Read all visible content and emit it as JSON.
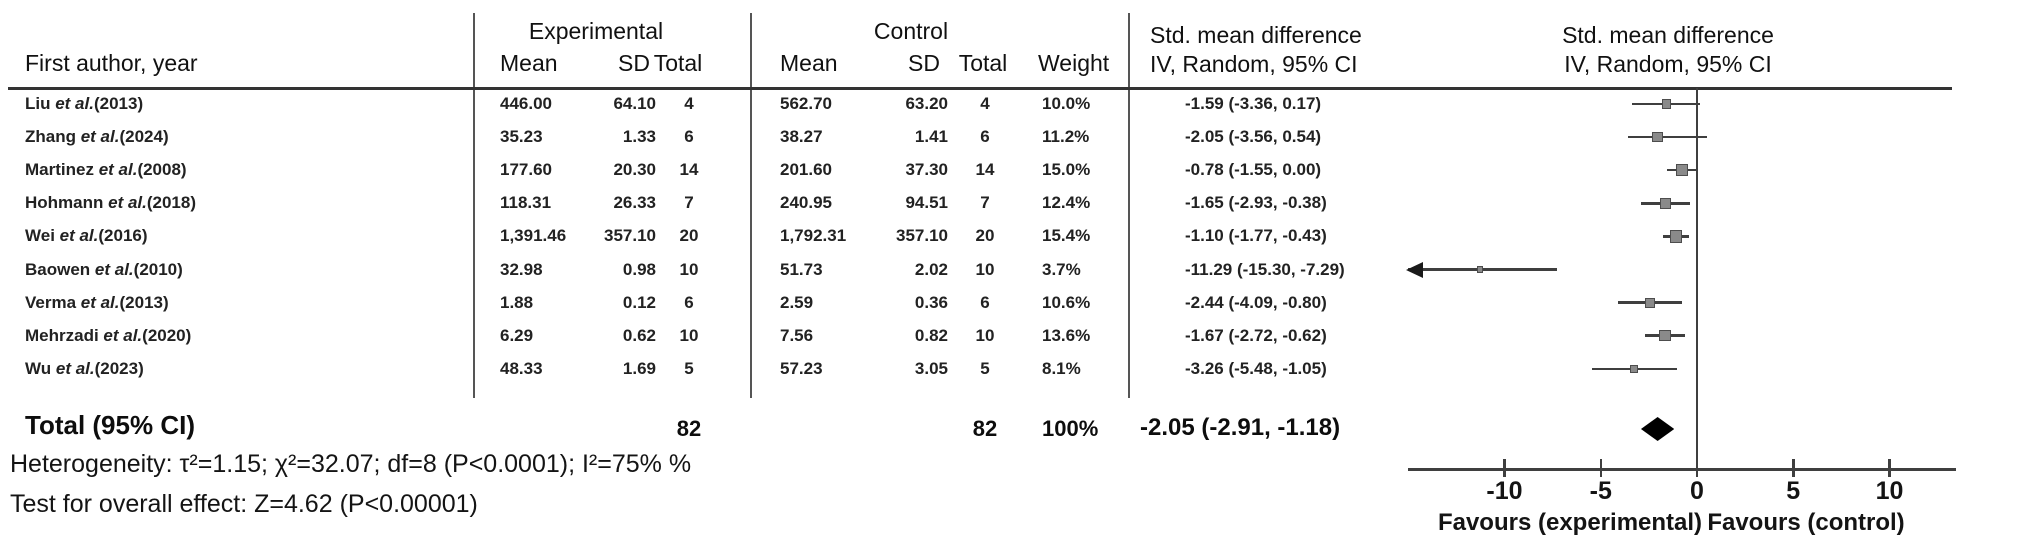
{
  "table": {
    "col_author": "First author, year",
    "group_experimental": "Experimental",
    "group_control": "Control",
    "sub_mean_exp": "Mean",
    "sub_sd_exp": "SD",
    "sub_total_exp": "Total",
    "sub_mean_ctrl": "Mean",
    "sub_sd_ctrl": "SD",
    "sub_total_ctrl": "Total",
    "sub_weight": "Weight",
    "smd_header_line1": "Std. mean difference",
    "smd_header_line2": "IV, Random, 95% CI",
    "plot_header_line1": "Std. mean difference",
    "plot_header_line2": "IV, Random, 95% CI"
  },
  "rows": [
    {
      "author_pre": "Liu ",
      "author_etal": "et al.",
      "author_post": "(2013)",
      "exp_mean": "446.00",
      "exp_sd": "64.10",
      "exp_total": "4",
      "ctrl_mean": "562.70",
      "ctrl_sd": "63.20",
      "ctrl_total": "4",
      "weight": "10.0%",
      "smd_ci": "-1.59 (-3.36, 0.17)"
    },
    {
      "author_pre": "Zhang ",
      "author_etal": "et al.",
      "author_post": "(2024)",
      "exp_mean": "35.23",
      "exp_sd": "1.33",
      "exp_total": "6",
      "ctrl_mean": "38.27",
      "ctrl_sd": "1.41",
      "ctrl_total": "6",
      "weight": "11.2%",
      "smd_ci": "-2.05 (-3.56, 0.54)"
    },
    {
      "author_pre": "Martinez ",
      "author_etal": "et al.",
      "author_post": "(2008)",
      "exp_mean": "177.60",
      "exp_sd": "20.30",
      "exp_total": "14",
      "ctrl_mean": "201.60",
      "ctrl_sd": "37.30",
      "ctrl_total": "14",
      "weight": "15.0%",
      "smd_ci": "-0.78 (-1.55, 0.00)"
    },
    {
      "author_pre": "Hohmann ",
      "author_etal": "et al.",
      "author_post": "(2018)",
      "exp_mean": "118.31",
      "exp_sd": "26.33",
      "exp_total": "7",
      "ctrl_mean": "240.95",
      "ctrl_sd": "94.51",
      "ctrl_total": "7",
      "weight": "12.4%",
      "smd_ci": "-1.65 (-2.93, -0.38)"
    },
    {
      "author_pre": "Wei ",
      "author_etal": "et al.",
      "author_post": "(2016)",
      "exp_mean": "1,391.46",
      "exp_sd": "357.10",
      "exp_total": "20",
      "ctrl_mean": "1,792.31",
      "ctrl_sd": "357.10",
      "ctrl_total": "20",
      "weight": "15.4%",
      "smd_ci": "-1.10 (-1.77, -0.43)"
    },
    {
      "author_pre": "Baowen ",
      "author_etal": "et al.",
      "author_post": "(2010)",
      "exp_mean": "32.98",
      "exp_sd": "0.98",
      "exp_total": "10",
      "ctrl_mean": "51.73",
      "ctrl_sd": "2.02",
      "ctrl_total": "10",
      "weight": "3.7%",
      "smd_ci": "-11.29 (-15.30, -7.29)"
    },
    {
      "author_pre": "Verma ",
      "author_etal": "et al.",
      "author_post": "(2013)",
      "exp_mean": "1.88",
      "exp_sd": "0.12",
      "exp_total": "6",
      "ctrl_mean": "2.59",
      "ctrl_sd": "0.36",
      "ctrl_total": "6",
      "weight": "10.6%",
      "smd_ci": "-2.44 (-4.09, -0.80)"
    },
    {
      "author_pre": "Mehrzadi ",
      "author_etal": "et al.",
      "author_post": "(2020)",
      "exp_mean": "6.29",
      "exp_sd": "0.62",
      "exp_total": "10",
      "ctrl_mean": "7.56",
      "ctrl_sd": "0.82",
      "ctrl_total": "10",
      "weight": "13.6%",
      "smd_ci": "-1.67 (-2.72, -0.62)"
    },
    {
      "author_pre": "Wu ",
      "author_etal": "et al.",
      "author_post": "(2023)",
      "exp_mean": "48.33",
      "exp_sd": "1.69",
      "exp_total": "5",
      "ctrl_mean": "57.23",
      "ctrl_sd": "3.05",
      "ctrl_total": "5",
      "weight": "8.1%",
      "smd_ci": "-3.26 (-5.48, -1.05)"
    }
  ],
  "total": {
    "label": "Total (95% CI)",
    "exp_total": "82",
    "ctrl_total": "82",
    "weight": "100%",
    "smd_ci": "-2.05 (-2.91, -1.18)"
  },
  "footnotes": {
    "heterogeneity": "Heterogeneity: τ²=1.15; χ²=32.07; df=8 (P<0.0001); I²=75% %",
    "overall_effect": "Test for overall effect: Z=4.62 (P<0.00001)"
  },
  "chart_data": {
    "type": "forest",
    "effect_measure": "Std. mean difference (IV, Random, 95% CI)",
    "axis_ticks": [
      -10,
      -5,
      0,
      5,
      10
    ],
    "xlim": [
      -15.0,
      13.0
    ],
    "xlabel_left": "Favours (experimental)",
    "xlabel_right": "Favours (control)",
    "studies": [
      {
        "name": "Liu et al.(2013)",
        "smd": -1.59,
        "ci_low": -3.36,
        "ci_high": 0.17,
        "weight_pct": 10.0
      },
      {
        "name": "Zhang et al.(2024)",
        "smd": -2.05,
        "ci_low": -3.56,
        "ci_high": 0.54,
        "weight_pct": 11.2
      },
      {
        "name": "Martinez et al.(2008)",
        "smd": -0.78,
        "ci_low": -1.55,
        "ci_high": 0.0,
        "weight_pct": 15.0
      },
      {
        "name": "Hohmann et al.(2018)",
        "smd": -1.65,
        "ci_low": -2.93,
        "ci_high": -0.38,
        "weight_pct": 12.4
      },
      {
        "name": "Wei et al.(2016)",
        "smd": -1.1,
        "ci_low": -1.77,
        "ci_high": -0.43,
        "weight_pct": 15.4
      },
      {
        "name": "Baowen et al.(2010)",
        "smd": -11.29,
        "ci_low": -15.3,
        "ci_high": -7.29,
        "weight_pct": 3.7
      },
      {
        "name": "Verma et al.(2013)",
        "smd": -2.44,
        "ci_low": -4.09,
        "ci_high": -0.8,
        "weight_pct": 10.6
      },
      {
        "name": "Mehrzadi et al.(2020)",
        "smd": -1.67,
        "ci_low": -2.72,
        "ci_high": -0.62,
        "weight_pct": 13.6
      },
      {
        "name": "Wu et al.(2023)",
        "smd": -3.26,
        "ci_low": -5.48,
        "ci_high": -1.05,
        "weight_pct": 8.1
      }
    ],
    "total": {
      "name": "Total (95% CI)",
      "smd": -2.05,
      "ci_low": -2.91,
      "ci_high": -1.18,
      "weight_pct": 100
    },
    "colors": {
      "square": "#8a8a8a",
      "square_border": "#4d4d4d",
      "line": "#3f3f3f",
      "diamond": "#000000"
    }
  }
}
